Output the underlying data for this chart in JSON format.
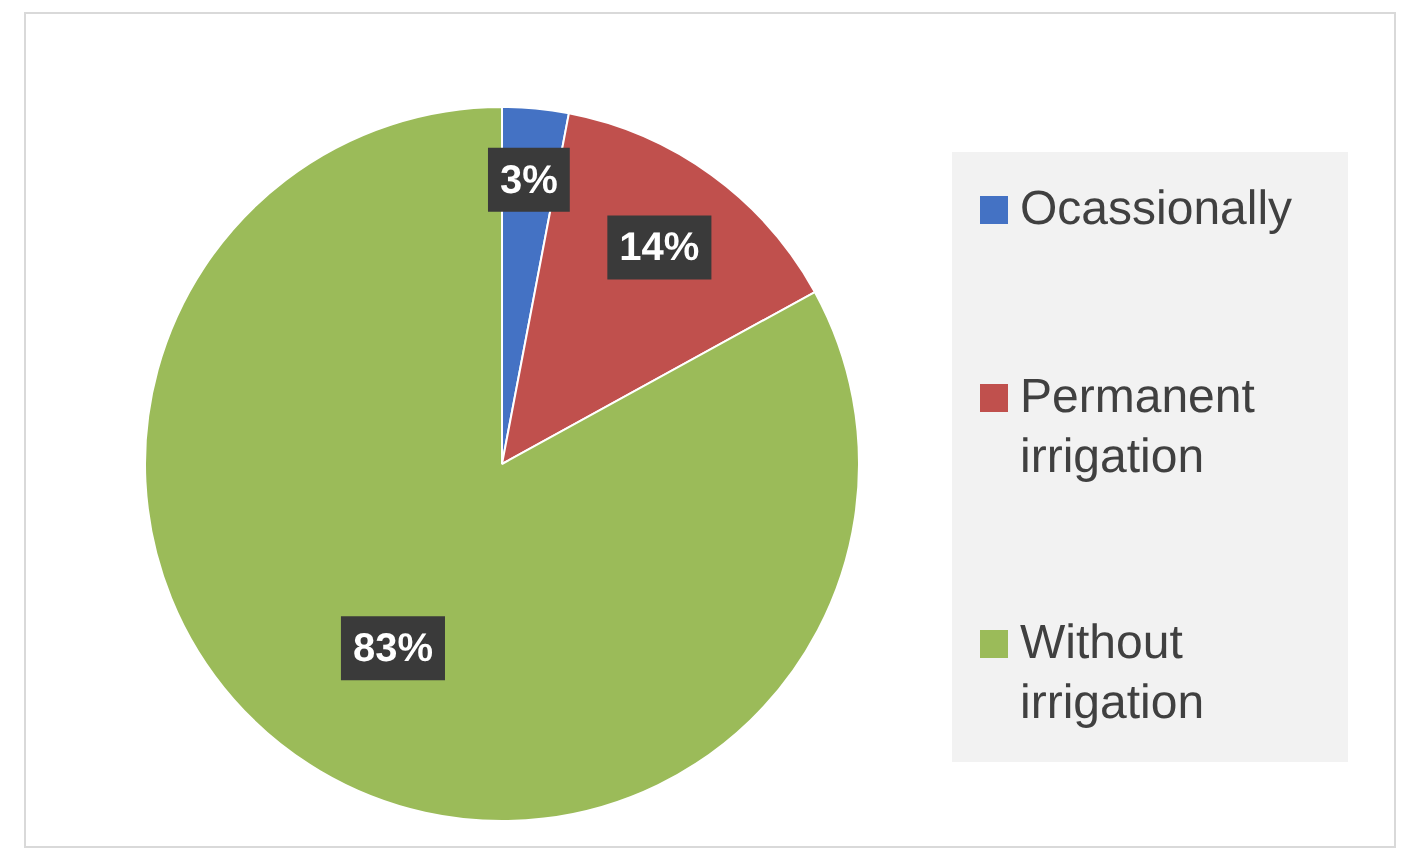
{
  "chart_data": {
    "type": "pie",
    "categories": [
      "Ocassionally",
      "Permanent irrigation",
      "Without irrigation"
    ],
    "values": [
      3,
      14,
      83
    ],
    "colors": [
      "#4472c4",
      "#c0504d",
      "#9bbb59"
    ],
    "value_labels": [
      "3%",
      "14%",
      "83%"
    ],
    "legend": "right"
  }
}
